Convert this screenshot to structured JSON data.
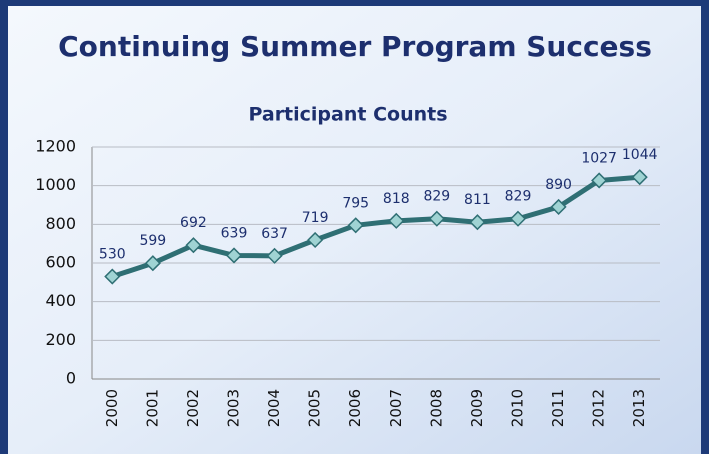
{
  "header": {
    "title": "Continuing Summer Program Success"
  },
  "chart_data": {
    "type": "line",
    "title": "Participant Counts",
    "categories": [
      "2000",
      "2001",
      "2002",
      "2003",
      "2004",
      "2005",
      "2006",
      "2007",
      "2008",
      "2009",
      "2010",
      "2011",
      "2012",
      "2013"
    ],
    "values": [
      530,
      599,
      692,
      639,
      637,
      719,
      795,
      818,
      829,
      811,
      829,
      890,
      1027,
      1044
    ],
    "color": "#2f6f74",
    "marker_color": "#9fd3d3",
    "ylim": [
      0,
      1200
    ],
    "yticks": [
      0,
      200,
      400,
      600,
      800,
      1000,
      1200
    ],
    "grid": true
  }
}
